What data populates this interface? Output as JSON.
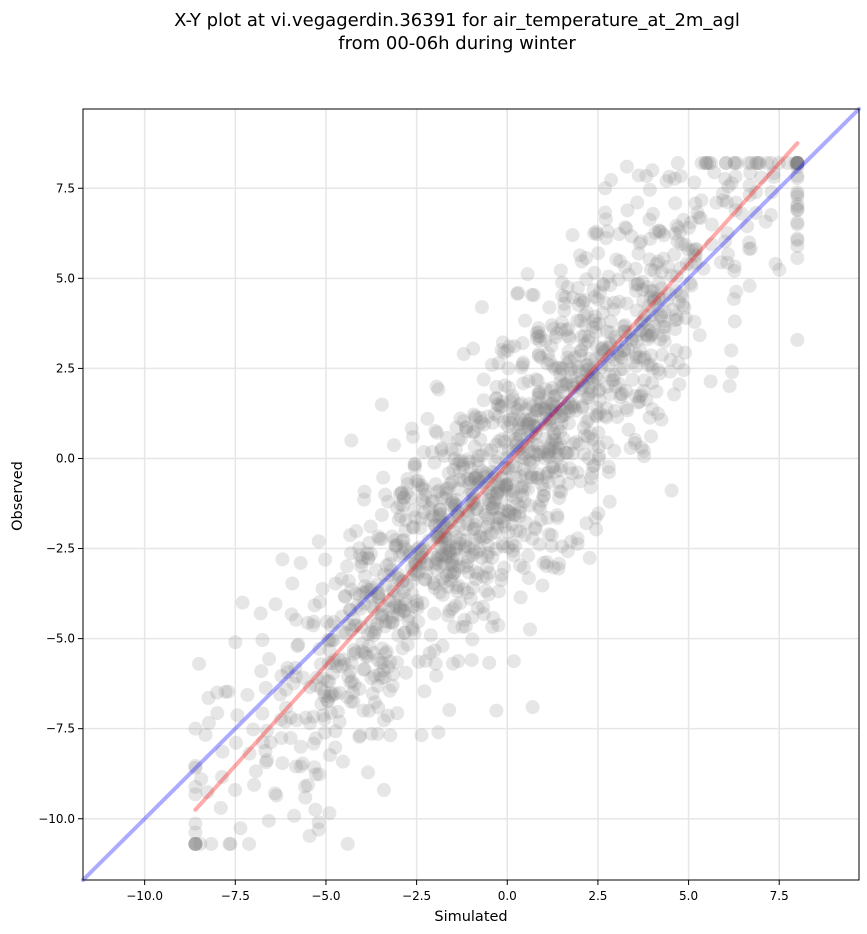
{
  "chart_data": {
    "type": "scatter",
    "title_lines": [
      "X-Y plot at vi.vegagerdin.36391 for air_temperature_at_2m_agl",
      "from 00-06h during winter"
    ],
    "xlabel": "Simulated",
    "ylabel": "Observed",
    "xlim": [
      -11.7,
      9.7
    ],
    "ylim": [
      -11.7,
      9.7
    ],
    "xticks": [
      -10.0,
      -7.5,
      -5.0,
      -2.5,
      0.0,
      2.5,
      5.0,
      7.5
    ],
    "yticks": [
      -10.0,
      -7.5,
      -5.0,
      -2.5,
      0.0,
      2.5,
      5.0,
      7.5
    ],
    "xtick_labels": [
      "−10.0",
      "−7.5",
      "−5.0",
      "−2.5",
      "0.0",
      "2.5",
      "5.0",
      "7.5"
    ],
    "ytick_labels": [
      "−10.0",
      "−7.5",
      "−5.0",
      "−2.5",
      "0.0",
      "2.5",
      "5.0",
      "7.5"
    ],
    "grid": true,
    "point_color": "#808080",
    "point_opacity": 0.2,
    "point_count_estimate": 1500,
    "points_note_sample": [
      [
        -8.6,
        -7.5
      ],
      [
        -8.5,
        -5.7
      ],
      [
        -8.0,
        -6.5
      ],
      [
        -7.9,
        -9.7
      ],
      [
        -7.5,
        -5.1
      ],
      [
        -7.3,
        -4.0
      ],
      [
        -6.8,
        -4.3
      ],
      [
        -6.2,
        -2.8
      ],
      [
        -5.7,
        -2.9
      ],
      [
        -5.2,
        -2.3
      ],
      [
        -5.2,
        -10.1
      ],
      [
        -5.2,
        -10.3
      ],
      [
        -4.4,
        -10.7
      ],
      [
        -4.3,
        0.5
      ],
      [
        -2.6,
        0.6
      ],
      [
        -2.2,
        1.1
      ],
      [
        -1.2,
        2.9
      ],
      [
        -0.7,
        4.2
      ],
      [
        0.3,
        4.6
      ],
      [
        1.8,
        6.2
      ],
      [
        2.7,
        7.5
      ],
      [
        3.3,
        8.1
      ],
      [
        4.0,
        8.0
      ],
      [
        5.5,
        8.2
      ],
      [
        7.0,
        7.8
      ],
      [
        8.0,
        6.9
      ],
      [
        7.4,
        5.4
      ],
      [
        6.2,
        2.4
      ],
      [
        3.7,
        0.3
      ],
      [
        2.3,
        -0.8
      ],
      [
        1.0,
        -2.9
      ],
      [
        0.7,
        -6.9
      ],
      [
        -0.3,
        -7.0
      ],
      [
        -1.9,
        -7.6
      ],
      [
        -3.4,
        -9.2
      ]
    ],
    "series": [
      {
        "kind": "line",
        "color": "#0000ff",
        "opacity": 0.33,
        "x": [
          -11.7,
          9.7
        ],
        "y": [
          -11.7,
          9.7
        ]
      },
      {
        "kind": "line",
        "color": "#ff0000",
        "opacity": 0.33,
        "x": [
          -8.6,
          8.0
        ],
        "y": [
          -9.75,
          8.75
        ]
      }
    ]
  }
}
